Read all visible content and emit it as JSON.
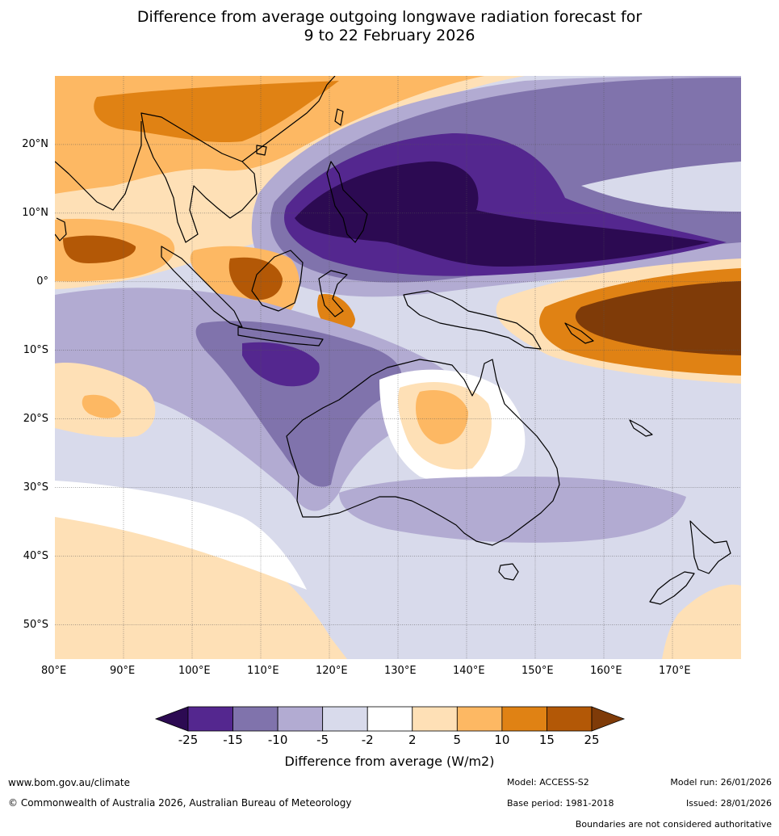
{
  "title": {
    "line1": "Difference from average outgoing longwave radiation forecast for",
    "line2": "9 to 22 February 2026"
  },
  "map": {
    "lon_range": [
      80,
      180
    ],
    "lat_range": [
      -55,
      30
    ],
    "lon_ticks": [
      "80°E",
      "90°E",
      "100°E",
      "110°E",
      "120°E",
      "130°E",
      "140°E",
      "150°E",
      "160°E",
      "170°E"
    ],
    "lat_ticks": [
      "20°N",
      "10°N",
      "0°",
      "10°S",
      "20°S",
      "30°S",
      "40°S",
      "50°S"
    ],
    "regions": [
      "Australia",
      "Indonesia",
      "Philippines",
      "New Zealand",
      "New Guinea",
      "Indochina"
    ]
  },
  "colorbar": {
    "ticks": [
      "-25",
      "-15",
      "-10",
      "-5",
      "-2",
      "2",
      "5",
      "10",
      "15",
      "25"
    ],
    "colors": [
      "#2c0a52",
      "#54278f",
      "#8073ac",
      "#b2abd2",
      "#d8daeb",
      "#ffffff",
      "#fee0b6",
      "#fdb863",
      "#e08214",
      "#b35806",
      "#7f3b08"
    ],
    "label": "Difference from average (W/m2)"
  },
  "footer": {
    "website": "www.bom.gov.au/climate",
    "copyright": "© Commonwealth of Australia 2026, Australian Bureau of Meteorology",
    "model": "Model: ACCESS-S2",
    "base_period": "Base period: 1981-2018",
    "model_run": "Model run: 26/01/2026",
    "issued": "Issued: 28/01/2026",
    "disclaimer": "Boundaries are not considered authoritative"
  }
}
